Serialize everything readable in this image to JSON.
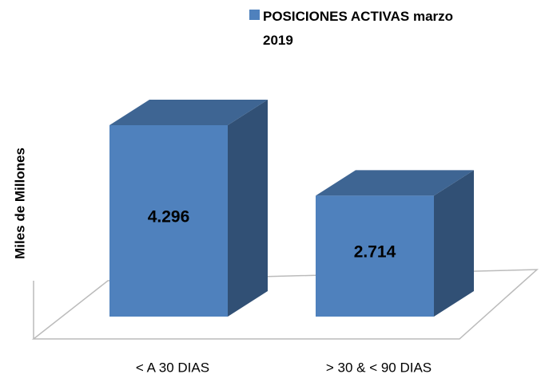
{
  "chart_data": {
    "type": "bar3d",
    "y_label": "Miles de Millones",
    "categories": [
      "< A 30 DIAS",
      "> 30 & < 90 DIAS"
    ],
    "series": [
      {
        "name": "POSICIONES ACTIVAS marzo 2019",
        "color": "#4f81bd",
        "values": [
          4296,
          2714
        ],
        "value_labels": [
          "4.296",
          "2.714"
        ]
      }
    ]
  }
}
